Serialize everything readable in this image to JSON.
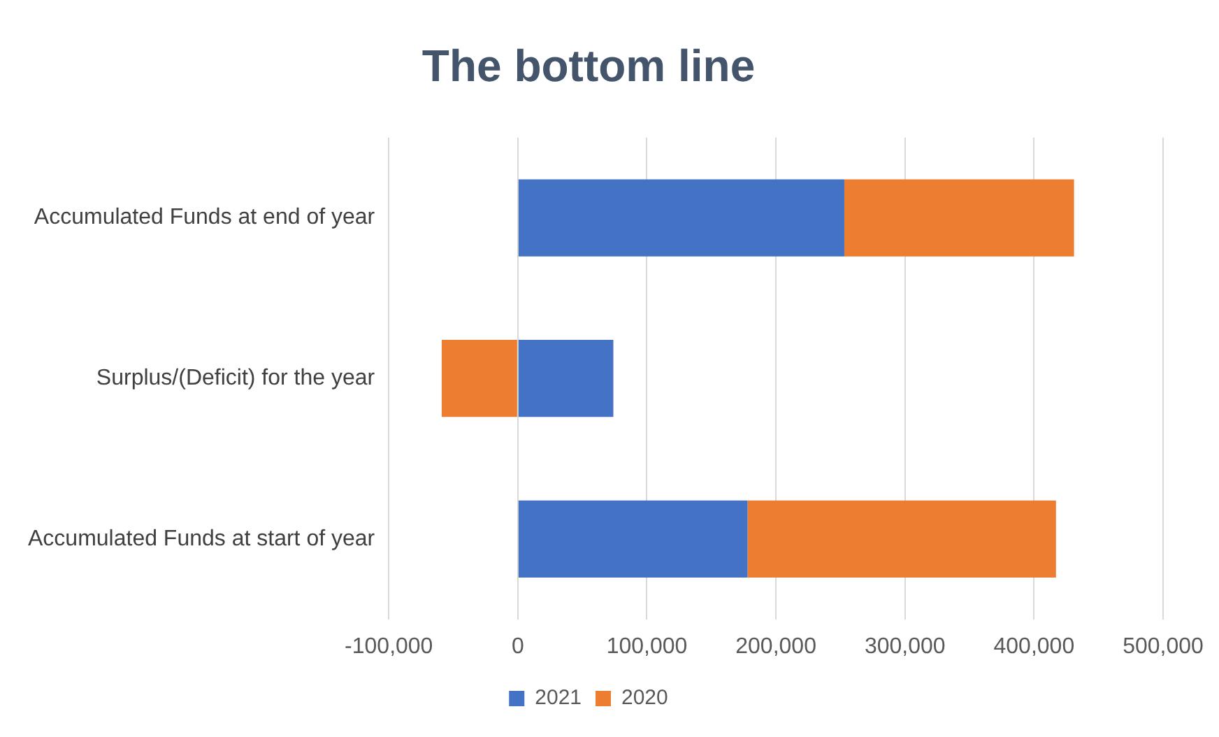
{
  "chart_data": {
    "type": "bar",
    "title": "The bottom line",
    "orientation": "horizontal",
    "stacked": true,
    "categories": [
      "Accumulated Funds at end of year",
      "Surplus/(Deficit) for the year",
      "Accumulated Funds at start of year"
    ],
    "series": [
      {
        "name": "2021",
        "color": "#4472c4",
        "values": [
          253000,
          74000,
          178000
        ]
      },
      {
        "name": "2020",
        "color": "#ed7d31",
        "values": [
          178000,
          -59000,
          239000
        ]
      }
    ],
    "xlim": [
      -100000,
      500000
    ],
    "xticks": [
      {
        "value": -100000,
        "label": "-100,000"
      },
      {
        "value": 0,
        "label": "0"
      },
      {
        "value": 100000,
        "label": "100,000"
      },
      {
        "value": 200000,
        "label": "200,000"
      },
      {
        "value": 300000,
        "label": "300,000"
      },
      {
        "value": 400000,
        "label": "400,000"
      },
      {
        "value": 500000,
        "label": "500,000"
      }
    ],
    "grid": "x",
    "legend": "bottom"
  }
}
